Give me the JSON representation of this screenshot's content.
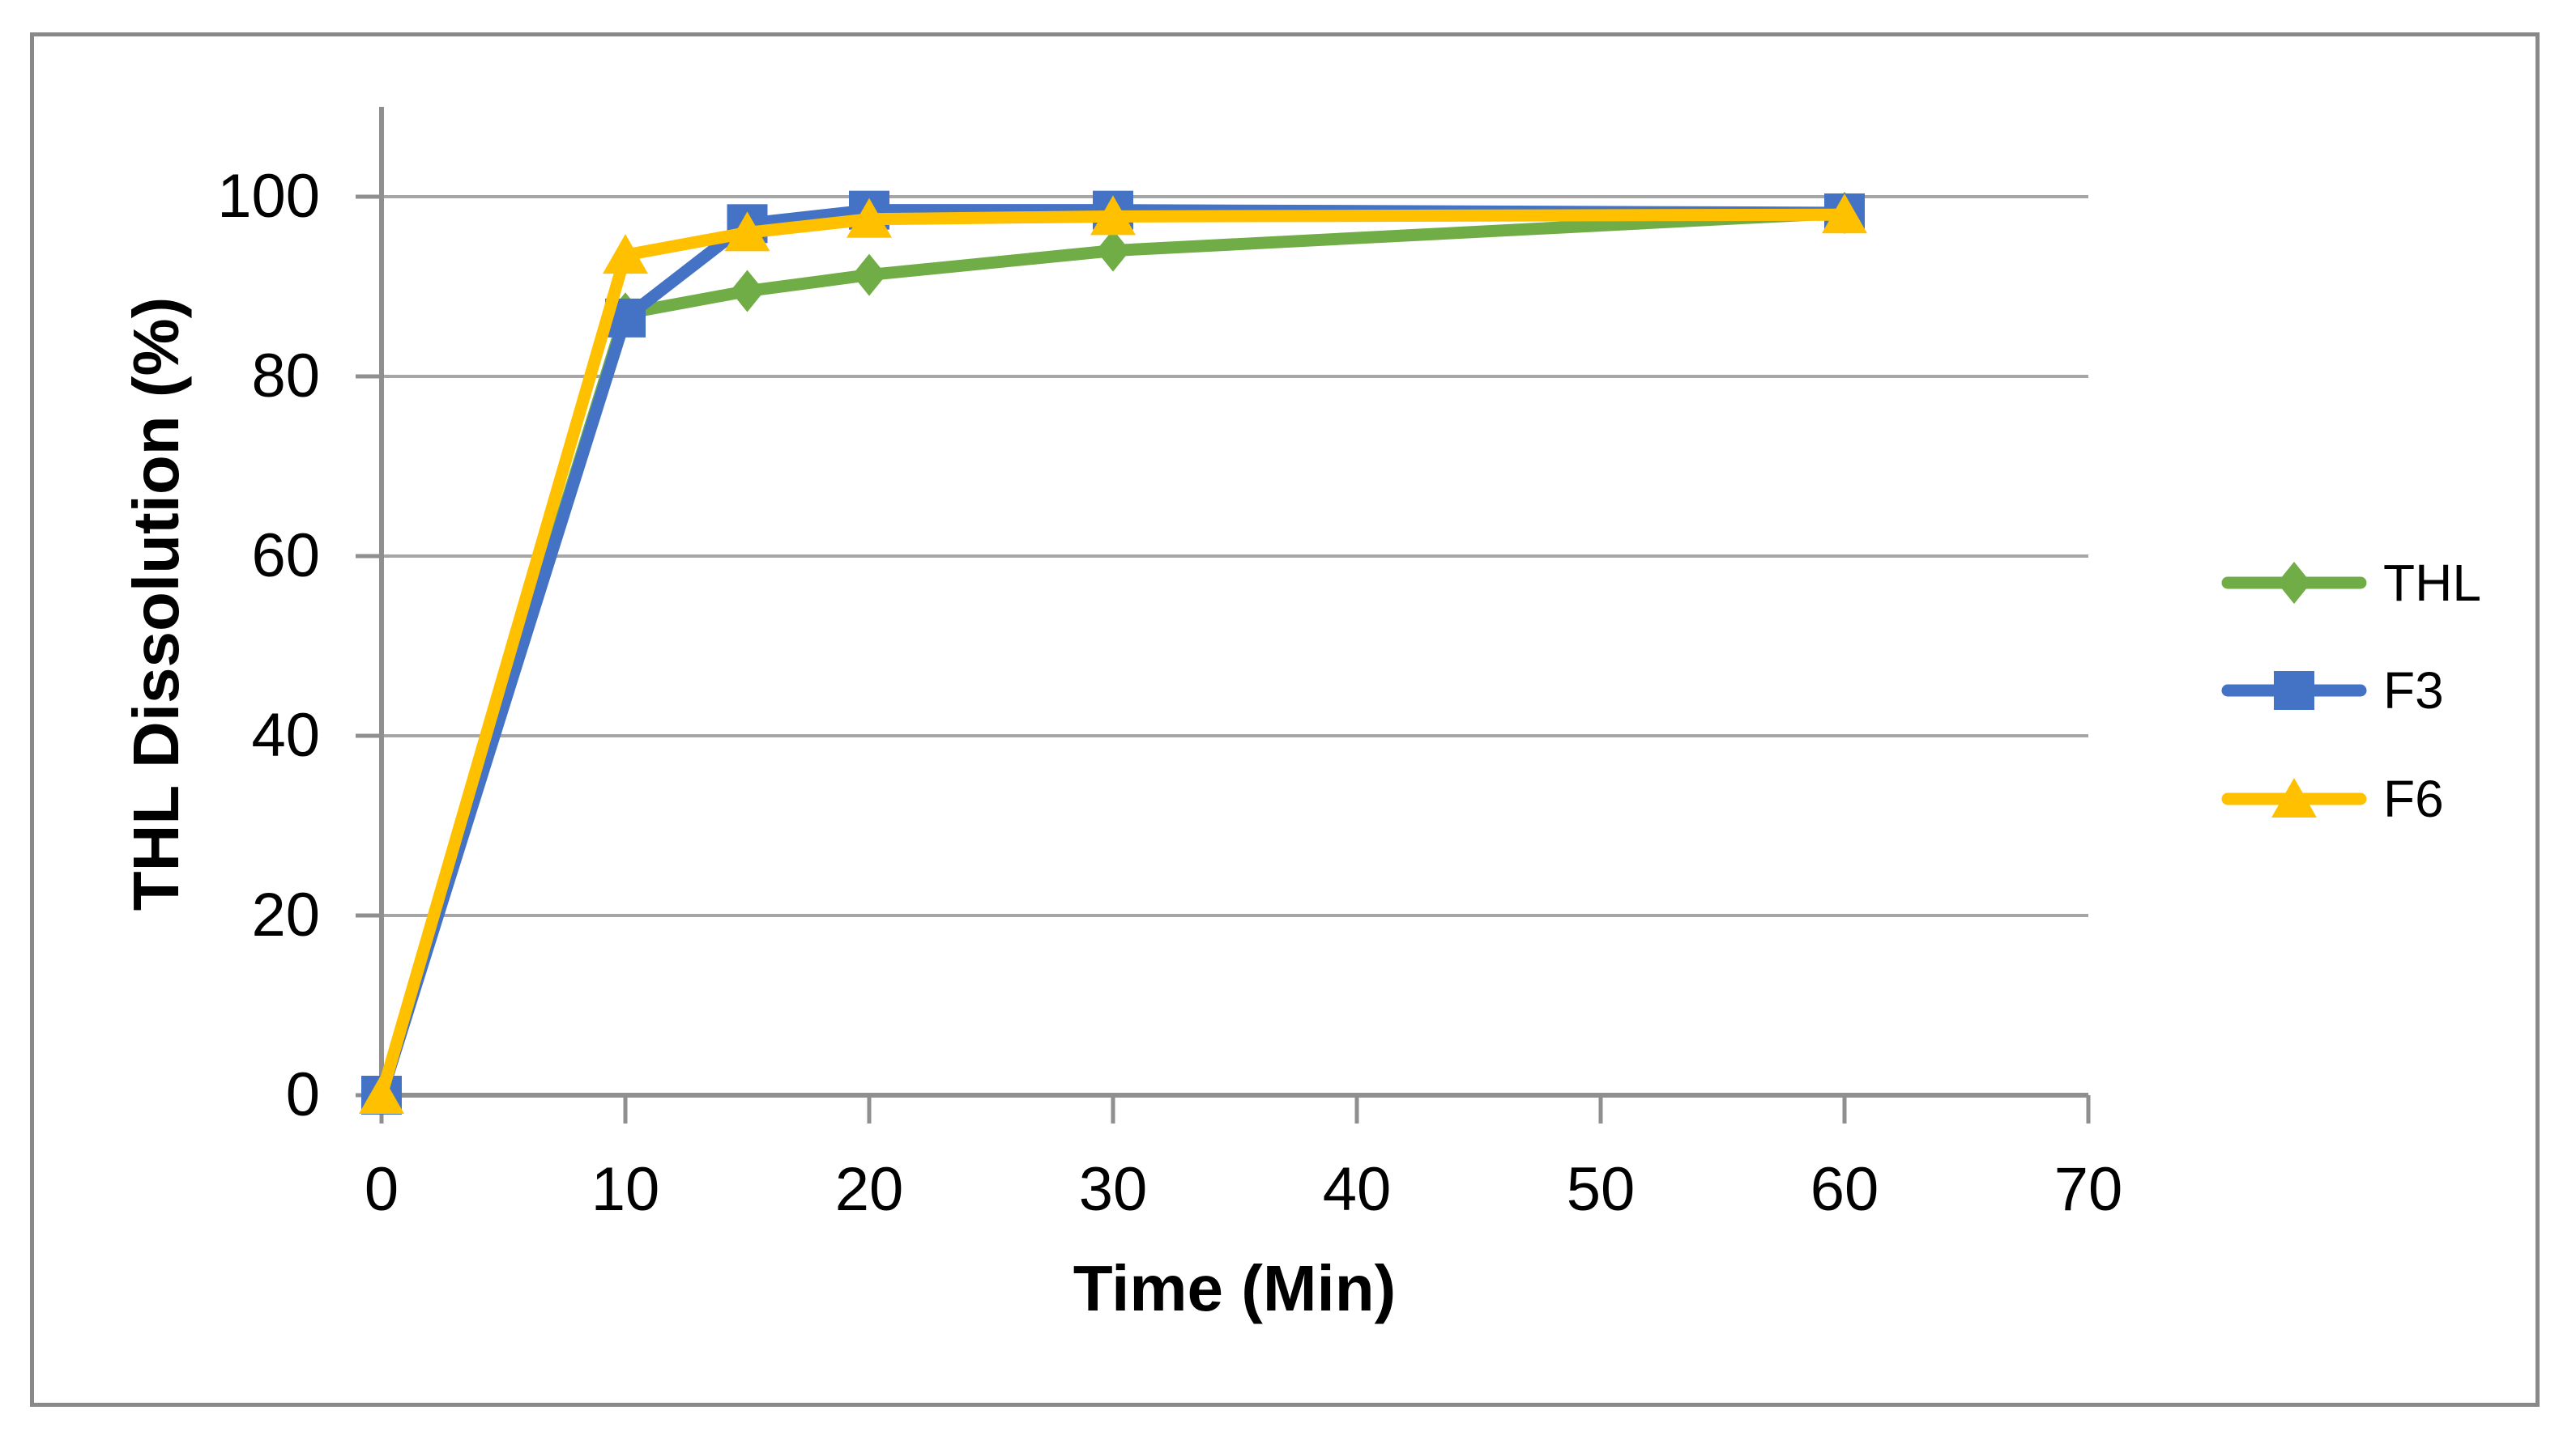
{
  "chart_data": {
    "type": "line",
    "title": "",
    "xlabel": "Time (Min)",
    "ylabel": "THL Dissolution (%)",
    "x": [
      0,
      10,
      15,
      20,
      30,
      60
    ],
    "series": [
      {
        "name": "THL",
        "color": "#70AD47",
        "marker": "diamond",
        "values": [
          0,
          87,
          89.5,
          91.3,
          94,
          98.2
        ]
      },
      {
        "name": "F3",
        "color": "#4472C4",
        "marker": "square",
        "values": [
          0,
          86.5,
          97,
          98.5,
          98.5,
          98.2
        ]
      },
      {
        "name": "F6",
        "color": "#FFC000",
        "marker": "triangle",
        "values": [
          0,
          93.5,
          96,
          97.5,
          97.8,
          98
        ]
      }
    ],
    "x_ticks": [
      0,
      10,
      20,
      30,
      40,
      50,
      60,
      70
    ],
    "y_ticks": [
      0,
      20,
      40,
      60,
      80,
      100
    ],
    "xlim": [
      0,
      70
    ],
    "ylim": [
      0,
      110
    ],
    "grid": "horizontal",
    "legend_position": "right",
    "gridline_color": "#A6A6A6",
    "axis_color": "#8F8F8F",
    "border_color": "#898989"
  }
}
